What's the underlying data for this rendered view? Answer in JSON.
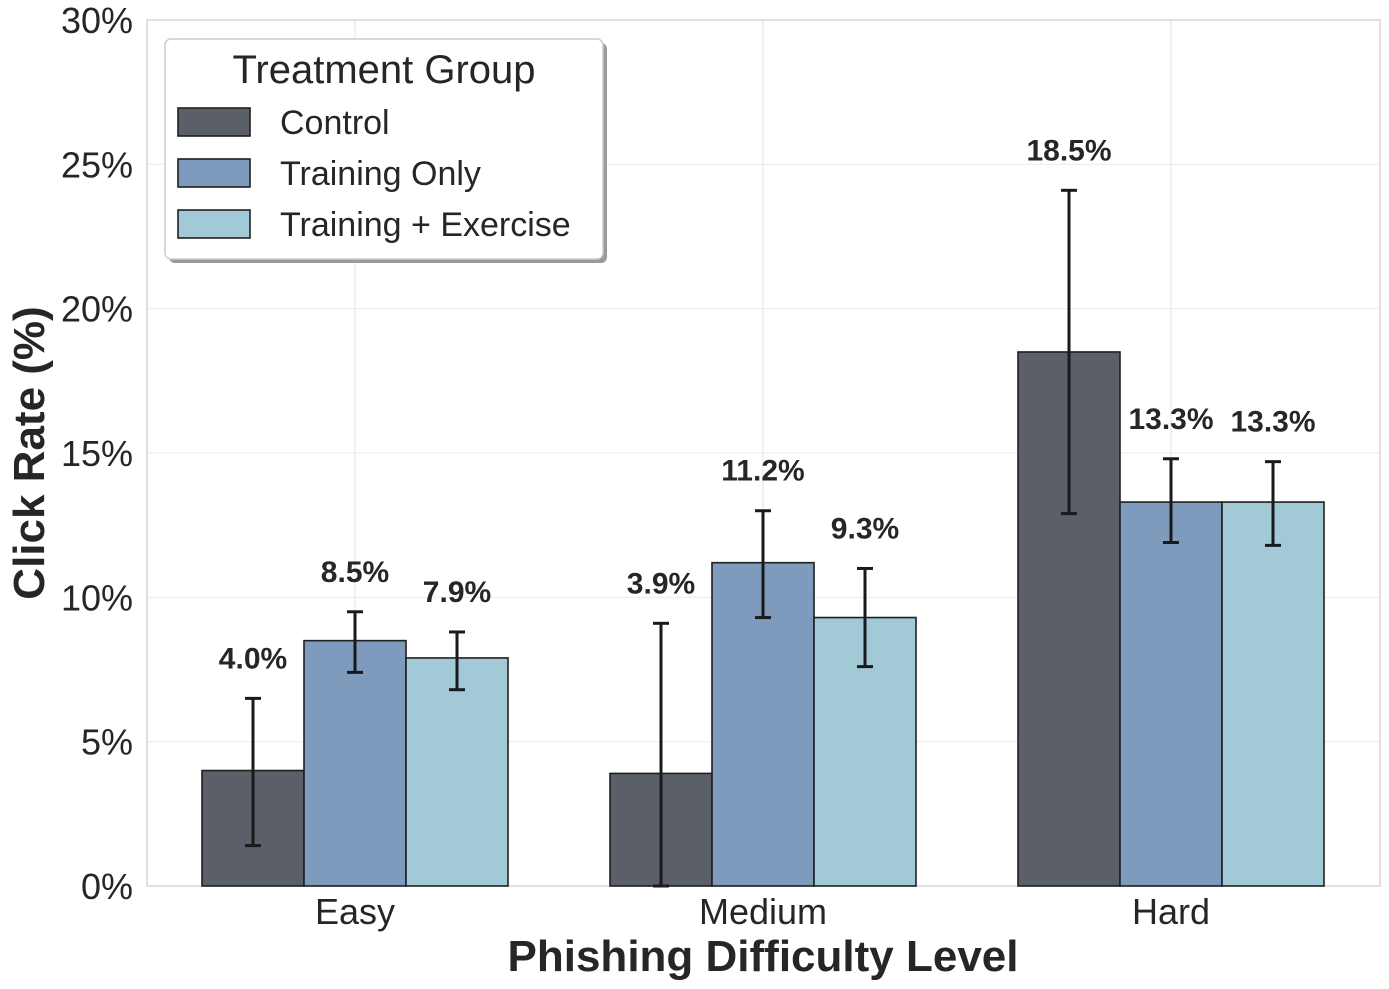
{
  "chart_data": {
    "type": "bar",
    "xlabel": "Phishing Difficulty Level",
    "ylabel": "Click Rate (%)",
    "ylim": [
      0,
      30
    ],
    "yticks": [
      0,
      5,
      10,
      15,
      20,
      25,
      30
    ],
    "ytick_labels": [
      "0%",
      "5%",
      "10%",
      "15%",
      "20%",
      "25%",
      "30%"
    ],
    "categories": [
      "Easy",
      "Medium",
      "Hard"
    ],
    "grid": true,
    "legend": {
      "title": "Treatment Group",
      "placement": "top-left"
    },
    "series": [
      {
        "name": "Control",
        "color": "#5a5f68",
        "values": [
          4.0,
          3.9,
          18.5
        ],
        "labels": [
          "4.0%",
          "3.9%",
          "18.5%"
        ],
        "err_low": [
          1.4,
          0.0,
          12.9
        ],
        "err_high": [
          6.5,
          9.1,
          24.1
        ]
      },
      {
        "name": "Training Only",
        "color": "#7e9abd",
        "values": [
          8.5,
          11.2,
          13.3
        ],
        "labels": [
          "8.5%",
          "11.2%",
          "13.3%"
        ],
        "err_low": [
          7.4,
          9.3,
          11.9
        ],
        "err_high": [
          9.5,
          13.0,
          14.8
        ]
      },
      {
        "name": "Training + Exercise",
        "color": "#a2cad6",
        "values": [
          7.9,
          9.3,
          13.3
        ],
        "labels": [
          "7.9%",
          "9.3%",
          "13.3%"
        ],
        "err_low": [
          6.8,
          7.6,
          11.8
        ],
        "err_high": [
          8.8,
          11.0,
          14.7
        ]
      }
    ]
  }
}
